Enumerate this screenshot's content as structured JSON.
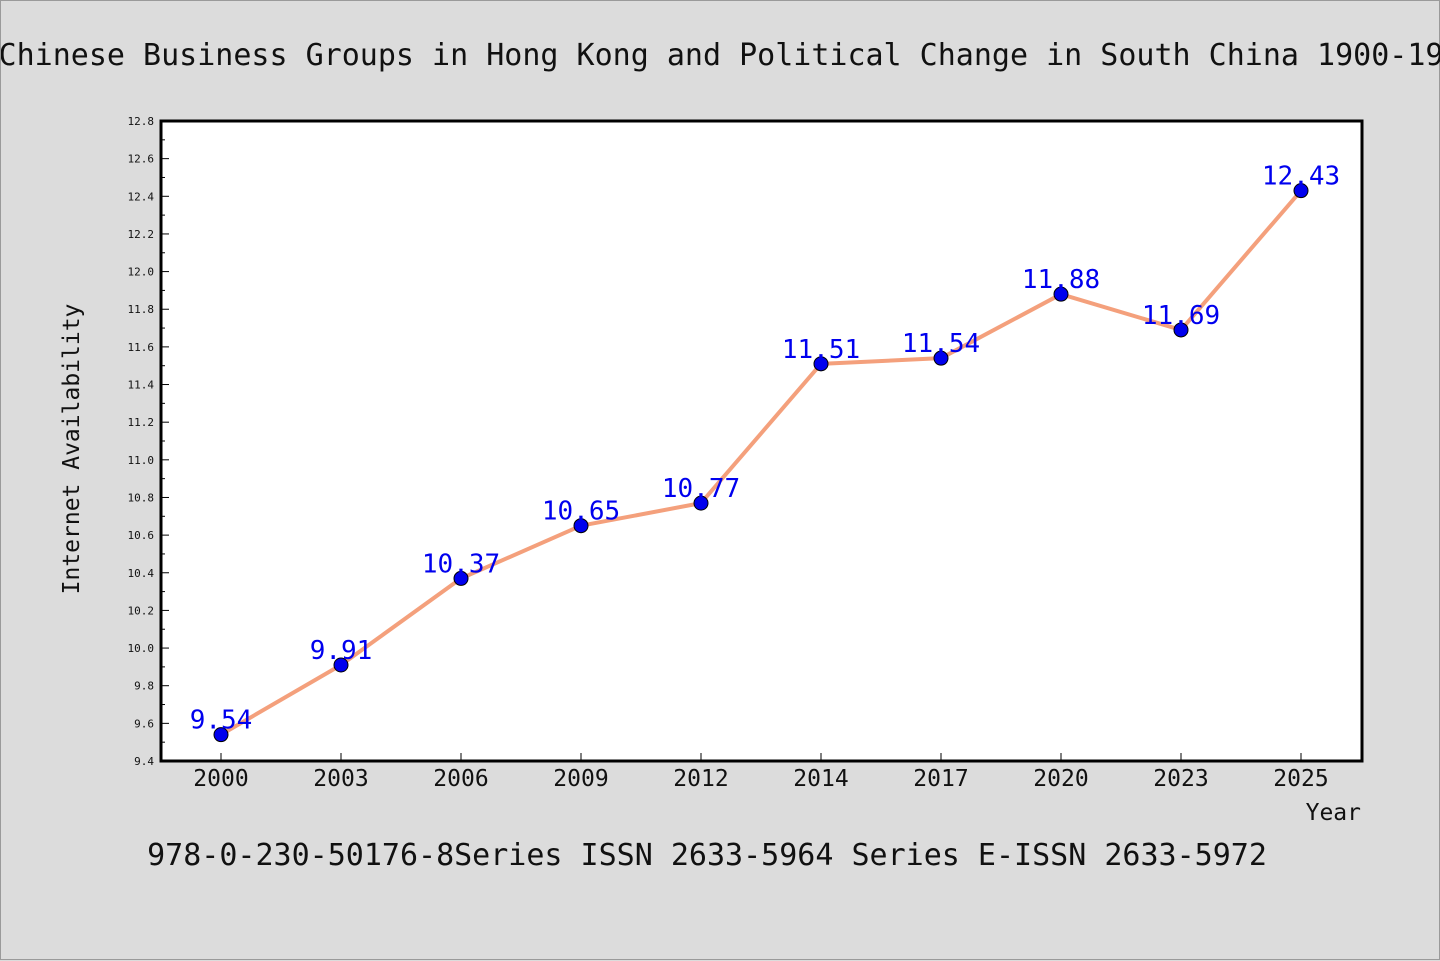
{
  "title": "Chinese Business Groups in Hong Kong and Political Change in South China 1900-19",
  "footer": "978-0-230-50176-8Series ISSN 2633-5964 Series E-ISSN 2633-5972",
  "colors": {
    "background": "#dcdcdc",
    "plot_background": "#ffffff",
    "line": "#f4a07c",
    "marker": "#0000ee",
    "data_label": "#0000ee"
  },
  "chart_data": {
    "type": "line",
    "title": "Chinese Business Groups in Hong Kong and Political Change in South China 1900-19",
    "xlabel": "Year",
    "ylabel": "Internet Availability",
    "categories": [
      "2000",
      "2003",
      "2006",
      "2009",
      "2012",
      "2014",
      "2017",
      "2020",
      "2023",
      "2025"
    ],
    "series": [
      {
        "values": [
          9.54,
          9.91,
          10.37,
          10.65,
          10.77,
          11.51,
          11.54,
          11.88,
          11.69,
          12.43
        ],
        "labels": [
          "9.54",
          "9.91",
          "10.37",
          "10.65",
          "10.77",
          "11.51",
          "11.54",
          "11.88",
          "11.69",
          "12.43"
        ]
      }
    ],
    "ylim": [
      9.4,
      12.8
    ],
    "yticks": [
      "9.4",
      "9.6",
      "9.8",
      "10.0",
      "10.2",
      "10.4",
      "10.6",
      "10.8",
      "11.0",
      "11.2",
      "11.4",
      "11.6",
      "11.8",
      "12.0",
      "12.2",
      "12.4",
      "12.6",
      "12.8"
    ],
    "grid": false,
    "legend": "none"
  }
}
